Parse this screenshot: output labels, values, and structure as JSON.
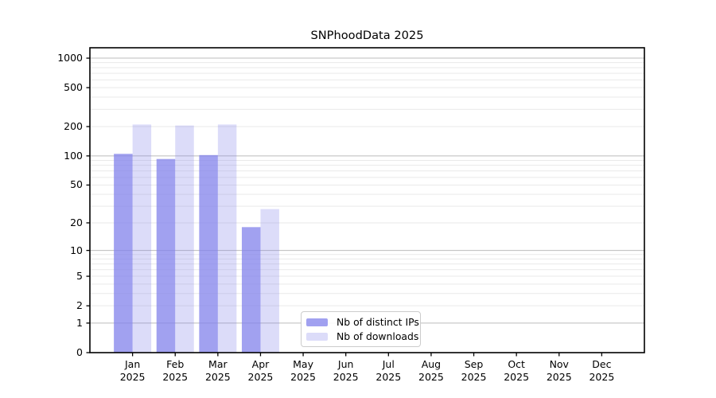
{
  "title": "SNPhoodData 2025",
  "chart_data": {
    "type": "bar",
    "title": "SNPhoodData 2025",
    "categories": [
      "Jan",
      "Feb",
      "Mar",
      "Apr",
      "May",
      "Jun",
      "Jul",
      "Aug",
      "Sep",
      "Oct",
      "Nov",
      "Dec"
    ],
    "x_year": "2025",
    "series": [
      {
        "name": "Nb of distinct IPs",
        "color": "#8282eb",
        "alpha": 0.75,
        "values": [
          105,
          93,
          102,
          18,
          0,
          0,
          0,
          0,
          0,
          0,
          0,
          0
        ]
      },
      {
        "name": "Nb of downloads",
        "color": "#8282eb",
        "alpha": 0.28,
        "values": [
          210,
          205,
          210,
          28,
          0,
          0,
          0,
          0,
          0,
          0,
          0,
          0
        ]
      }
    ],
    "yticks": [
      0,
      1,
      2,
      5,
      10,
      20,
      50,
      100,
      200,
      500,
      1000
    ],
    "yscale": "log1p",
    "ylim": [
      0,
      1276
    ],
    "grid": true,
    "legend_position": "lower center",
    "colors": {
      "grid_major": "#bcbcbc",
      "grid_minor": "#e9e9e9",
      "spine": "#000000",
      "text": "#000000",
      "background": "#ffffff"
    }
  }
}
